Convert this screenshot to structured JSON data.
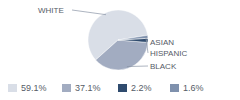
{
  "chart_data": {
    "type": "pie",
    "categories": [
      "WHITE",
      "BLACK",
      "ASIAN",
      "HISPANIC"
    ],
    "values": [
      59.1,
      37.1,
      2.2,
      1.6
    ],
    "value_labels": [
      "59.1%",
      "37.1%",
      "2.2%",
      "1.6%"
    ],
    "colors": [
      "#d9dee7",
      "#a2acc1",
      "#2f4b6e",
      "#7f91ad"
    ],
    "legend": "bottom"
  }
}
